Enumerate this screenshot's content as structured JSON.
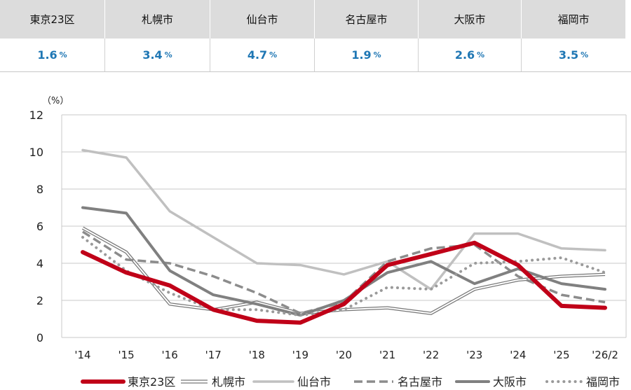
{
  "summary": {
    "cities": [
      {
        "name": "東京23区",
        "value": "1.6",
        "unit": "%"
      },
      {
        "name": "札幌市",
        "value": "3.4",
        "unit": "%"
      },
      {
        "name": "仙台市",
        "value": "4.7",
        "unit": "%"
      },
      {
        "name": "名古屋市",
        "value": "1.9",
        "unit": "%"
      },
      {
        "name": "大阪市",
        "value": "2.6",
        "unit": "%"
      },
      {
        "name": "福岡市",
        "value": "3.5",
        "unit": "%"
      }
    ]
  },
  "chart_data": {
    "type": "line",
    "ylabel": "（%）",
    "ylim": [
      0,
      12
    ],
    "yticks": [
      0,
      2,
      4,
      6,
      8,
      10,
      12
    ],
    "grid": true,
    "legend_position": "bottom",
    "categories": [
      "'14",
      "'15",
      "'16",
      "'17",
      "'18",
      "'19",
      "'20",
      "'21",
      "'22",
      "'23",
      "'24",
      "'25",
      "'26/2"
    ],
    "series": [
      {
        "name": "東京23区",
        "style": "thick",
        "color": "#c00018",
        "values": [
          4.6,
          3.5,
          2.8,
          1.5,
          0.9,
          0.8,
          1.8,
          3.9,
          4.5,
          5.1,
          3.9,
          1.7,
          1.6
        ]
      },
      {
        "name": "札幌市",
        "style": "double",
        "color": "#777777",
        "values": [
          5.9,
          4.6,
          1.8,
          1.5,
          1.9,
          1.3,
          1.5,
          1.6,
          1.3,
          2.6,
          3.1,
          3.3,
          3.4
        ]
      },
      {
        "name": "仙台市",
        "style": "solid-light",
        "color": "#c0c0c0",
        "values": [
          10.1,
          9.7,
          6.8,
          5.4,
          4.0,
          3.9,
          3.4,
          4.1,
          2.6,
          5.6,
          5.6,
          4.8,
          4.7
        ]
      },
      {
        "name": "名古屋市",
        "style": "dashed",
        "color": "#8c8c8c",
        "values": [
          5.7,
          4.2,
          4.0,
          3.3,
          2.4,
          1.3,
          1.9,
          4.1,
          4.8,
          5.0,
          3.3,
          2.3,
          1.9
        ]
      },
      {
        "name": "大阪市",
        "style": "solid-dark",
        "color": "#808080",
        "values": [
          7.0,
          6.7,
          3.6,
          2.3,
          1.8,
          1.2,
          2.0,
          3.5,
          4.1,
          2.9,
          3.7,
          2.9,
          2.6
        ]
      },
      {
        "name": "福岡市",
        "style": "dotted",
        "color": "#9a9a9a",
        "values": [
          5.4,
          3.6,
          2.4,
          1.5,
          1.5,
          1.2,
          1.5,
          2.7,
          2.6,
          4.0,
          4.1,
          4.3,
          3.5
        ]
      }
    ]
  }
}
